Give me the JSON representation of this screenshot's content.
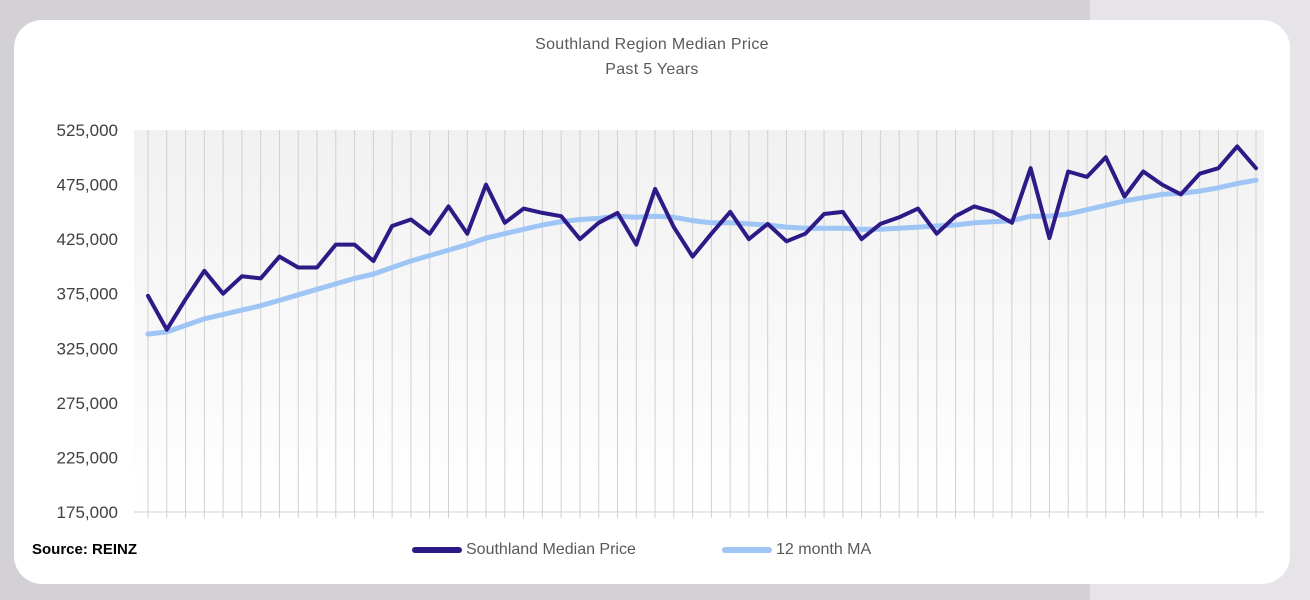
{
  "chart_data": {
    "type": "line",
    "title": "Southland Region Median Price",
    "subtitle": "Past 5 Years",
    "ylim": [
      175000,
      525000
    ],
    "yticks": [
      "525,000",
      "475,000",
      "425,000",
      "375,000",
      "325,000",
      "275,000",
      "225,000",
      "175,000"
    ],
    "ytick_values": [
      525000,
      475000,
      425000,
      375000,
      325000,
      275000,
      225000,
      175000
    ],
    "grid": "vertical",
    "legend": "bottom",
    "series": [
      {
        "name": "Southland Median Price",
        "color": "#2e1a87",
        "values": [
          373000,
          342000,
          370000,
          396000,
          375000,
          391000,
          389000,
          409000,
          399000,
          399000,
          420000,
          420000,
          405000,
          437000,
          443000,
          430000,
          455000,
          430000,
          475000,
          440000,
          453000,
          449000,
          446000,
          425000,
          440000,
          449000,
          420000,
          471000,
          436000,
          409000,
          430000,
          450000,
          425000,
          439000,
          423000,
          430000,
          448000,
          450000,
          425000,
          439000,
          445000,
          453000,
          430000,
          446000,
          455000,
          450000,
          440000,
          490000,
          426000,
          487000,
          482000,
          500000,
          464000,
          487000,
          475000,
          466000,
          485000,
          490000,
          510000,
          490000
        ]
      },
      {
        "name": "12 month MA",
        "color": "#9ec5f5",
        "values": [
          338000,
          340000,
          346000,
          352000,
          356000,
          360000,
          364000,
          369000,
          374000,
          379000,
          384000,
          389000,
          393000,
          399000,
          405000,
          410000,
          415000,
          420000,
          426000,
          430000,
          434000,
          438000,
          441000,
          443000,
          444000,
          446000,
          445000,
          446000,
          445000,
          442000,
          440000,
          440000,
          439000,
          438000,
          436000,
          435000,
          435000,
          435000,
          434000,
          434000,
          435000,
          436000,
          437000,
          438000,
          440000,
          441000,
          442000,
          446000,
          446000,
          448000,
          452000,
          456000,
          460000,
          463000,
          466000,
          467000,
          469000,
          472000,
          476000,
          479000
        ]
      }
    ]
  },
  "source_label": "Source: REINZ"
}
